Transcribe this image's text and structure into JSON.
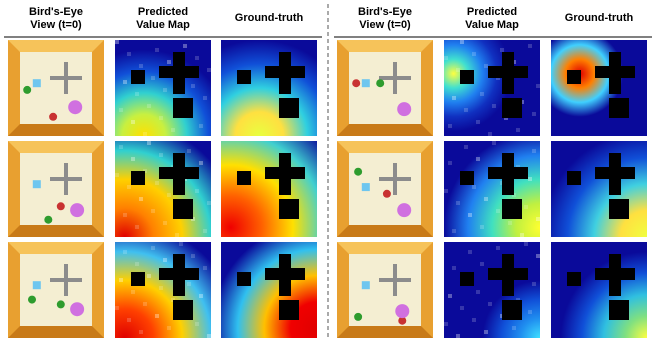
{
  "panels": [
    {
      "headers": [
        {
          "lines": [
            "Bird's-Eye",
            "View (t=0)"
          ]
        },
        {
          "lines": [
            "Predicted",
            "Value Map"
          ]
        },
        {
          "lines": [
            "Ground-truth"
          ]
        }
      ]
    },
    {
      "headers": [
        {
          "lines": [
            "Bird's-Eye",
            "View (t=0)"
          ]
        },
        {
          "lines": [
            "Predicted",
            "Value Map"
          ]
        },
        {
          "lines": [
            "Ground-truth"
          ]
        }
      ]
    }
  ]
}
